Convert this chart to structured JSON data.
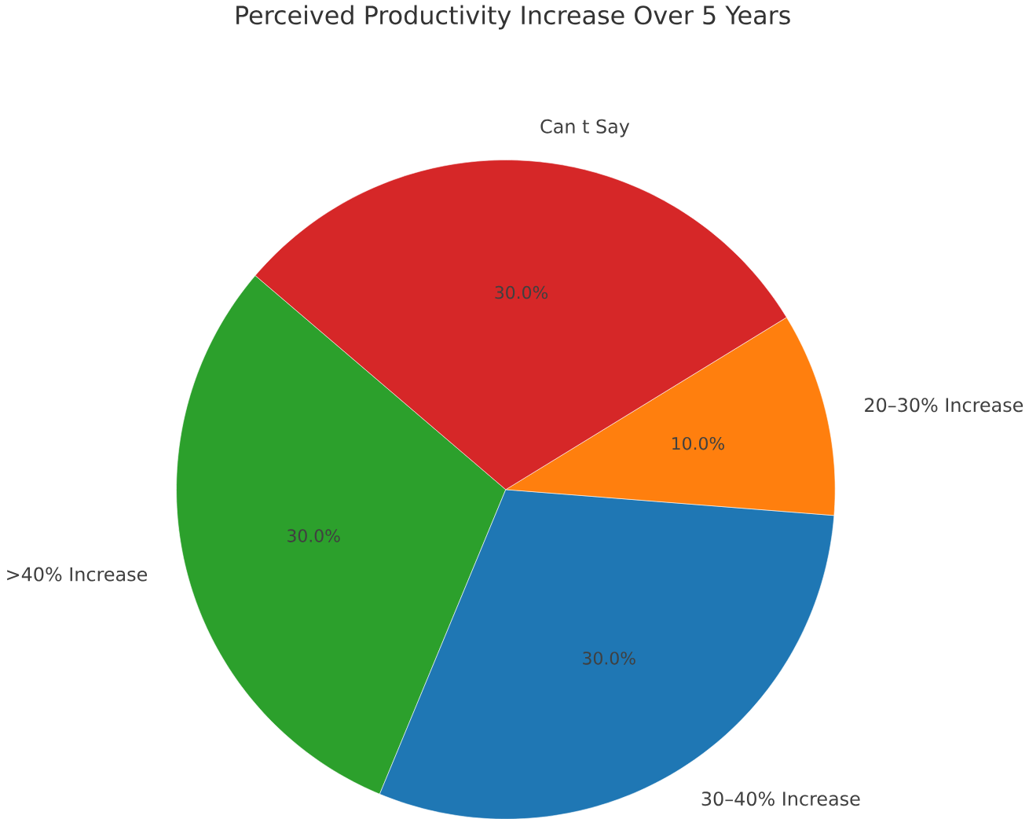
{
  "chart_data": {
    "type": "pie",
    "title": "Perceived Productivity Increase Over 5 Years",
    "categories": [
      ">40% Increase",
      "30–40% Increase",
      "20–30% Increase",
      "Can t Say"
    ],
    "values": [
      30,
      30,
      10,
      30
    ],
    "value_labels": [
      "30.0%",
      "30.0%",
      "10.0%",
      "30.0%"
    ],
    "colors": [
      "#2ca02c",
      "#1f77b4",
      "#ff7f0e",
      "#d62728"
    ]
  }
}
